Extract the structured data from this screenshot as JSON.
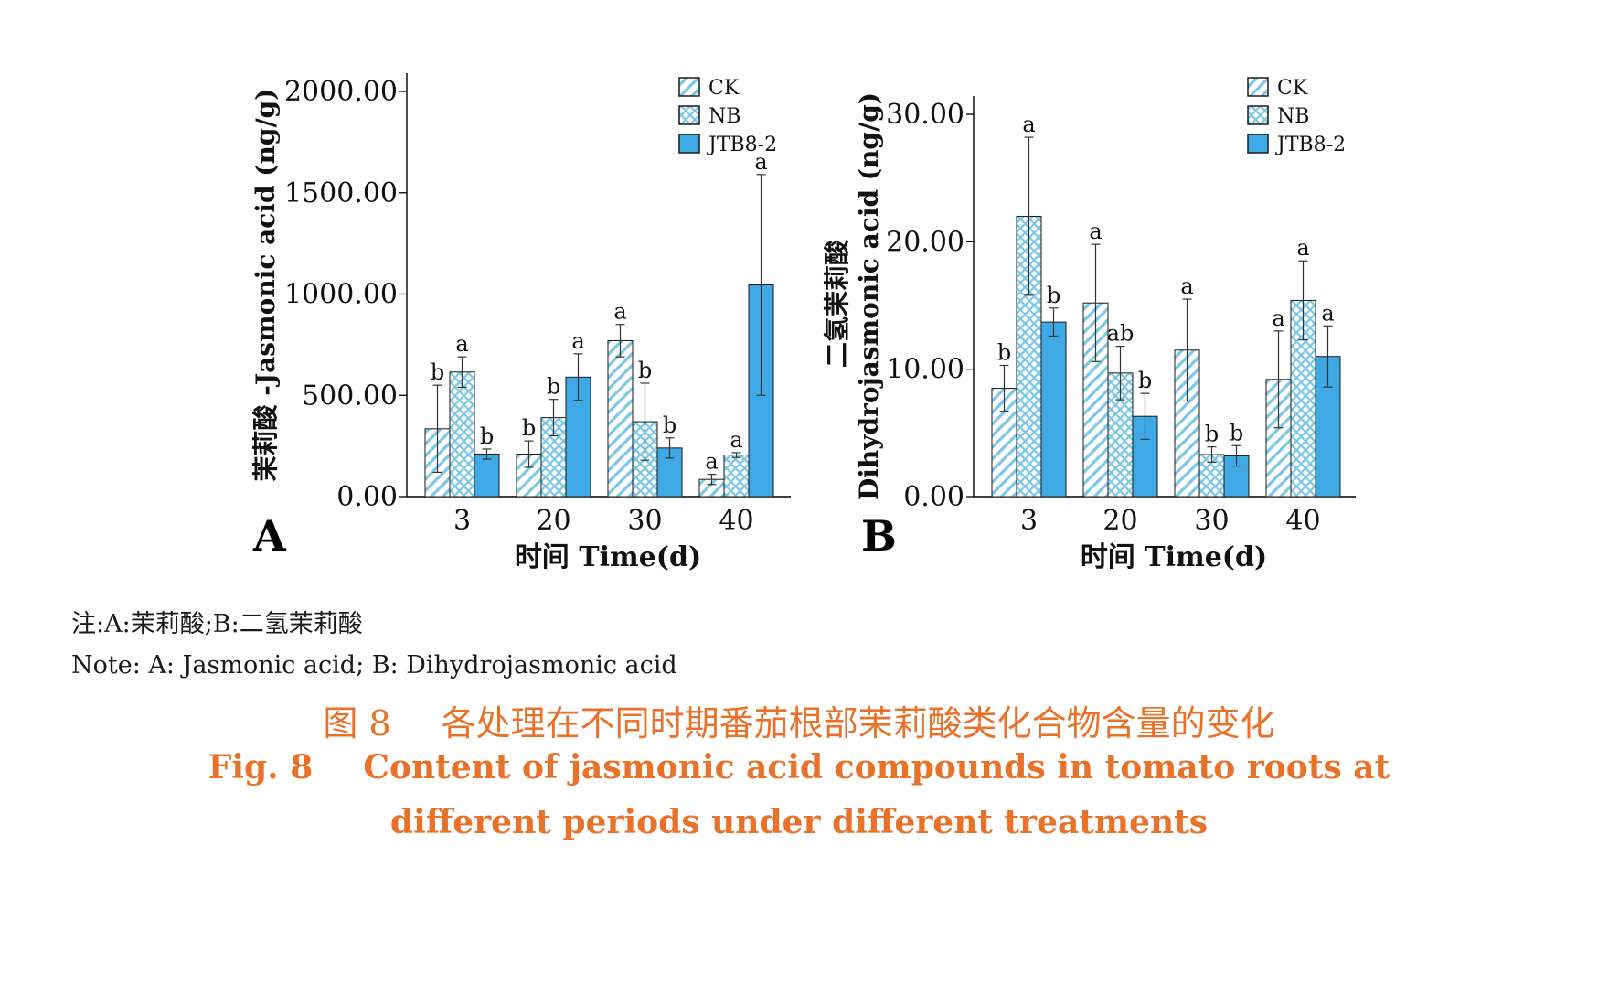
{
  "panels": [
    {
      "panel_label": "A",
      "ylabel": "茉莉酸 -Jasmonic acid (ng/g)",
      "xlabel": "时间 Time(d)"
    },
    {
      "panel_label": "B",
      "ylabel_cn": "二氢茉莉酸",
      "ylabel": "Dihydrojasmonic acid (ng/g)",
      "xlabel": "时间 Time(d)"
    }
  ],
  "legend": [
    "CK",
    "NB",
    "JTB8-2"
  ],
  "series_style": {
    "CK": {
      "pattern": "diagonal-hatch",
      "color": "#7cc7e6"
    },
    "NB": {
      "pattern": "crosshatch",
      "color": "#7cc7e6"
    },
    "JTB8-2": {
      "pattern": "solid",
      "color": "#3fa9e6"
    }
  },
  "chart_data": [
    {
      "type": "bar",
      "title": "",
      "xlabel": "时间 Time(d)",
      "ylabel": "茉莉酸 -Jasmonic acid (ng/g)",
      "categories": [
        "3",
        "20",
        "30",
        "40"
      ],
      "ylim": [
        0,
        2000
      ],
      "yticks": [
        "0.00",
        "500.00",
        "1000.00",
        "1500.00",
        "2000.00"
      ],
      "series": [
        {
          "name": "CK",
          "values": [
            335,
            210,
            770,
            85
          ],
          "errors": [
            215,
            65,
            80,
            25
          ],
          "letters": [
            "b",
            "b",
            "a",
            "a"
          ]
        },
        {
          "name": "NB",
          "values": [
            615,
            390,
            370,
            205
          ],
          "errors": [
            75,
            90,
            190,
            12
          ],
          "letters": [
            "a",
            "b",
            "b",
            "a"
          ]
        },
        {
          "name": "JTB8-2",
          "values": [
            210,
            590,
            240,
            1045
          ],
          "errors": [
            25,
            115,
            50,
            545
          ],
          "letters": [
            "b",
            "a",
            "b",
            "a"
          ]
        }
      ]
    },
    {
      "type": "bar",
      "title": "",
      "xlabel": "时间 Time(d)",
      "ylabel": "二氢茉莉酸 Dihydrojasmonic acid (ng/g)",
      "categories": [
        "3",
        "20",
        "30",
        "40"
      ],
      "ylim": [
        0,
        30
      ],
      "yticks": [
        "0.00",
        "10.00",
        "20.00",
        "30.00"
      ],
      "series": [
        {
          "name": "CK",
          "values": [
            8.5,
            15.2,
            11.5,
            9.2
          ],
          "errors": [
            1.8,
            4.6,
            4.0,
            3.8
          ],
          "letters": [
            "b",
            "a",
            "a",
            "a"
          ]
        },
        {
          "name": "NB",
          "values": [
            22.0,
            9.7,
            3.3,
            15.4
          ],
          "errors": [
            6.2,
            2.1,
            0.6,
            3.1
          ],
          "letters": [
            "a",
            "ab",
            "b",
            "a"
          ]
        },
        {
          "name": "JTB8-2",
          "values": [
            13.7,
            6.3,
            3.2,
            11.0
          ],
          "errors": [
            1.1,
            1.8,
            0.8,
            2.4
          ],
          "letters": [
            "b",
            "b",
            "b",
            "a"
          ]
        }
      ]
    }
  ],
  "notes": {
    "cn": "注:A:茉莉酸;B:二氢茉莉酸",
    "en": "Note: A: Jasmonic acid; B: Dihydrojasmonic acid"
  },
  "caption": {
    "cn_num": "图 8",
    "cn_text": "各处理在不同时期番茄根部茉莉酸类化合物含量的变化",
    "en_num": "Fig. 8",
    "en_line1": "Content of jasmonic acid compounds in tomato roots at",
    "en_line2": "different periods under different treatments"
  }
}
